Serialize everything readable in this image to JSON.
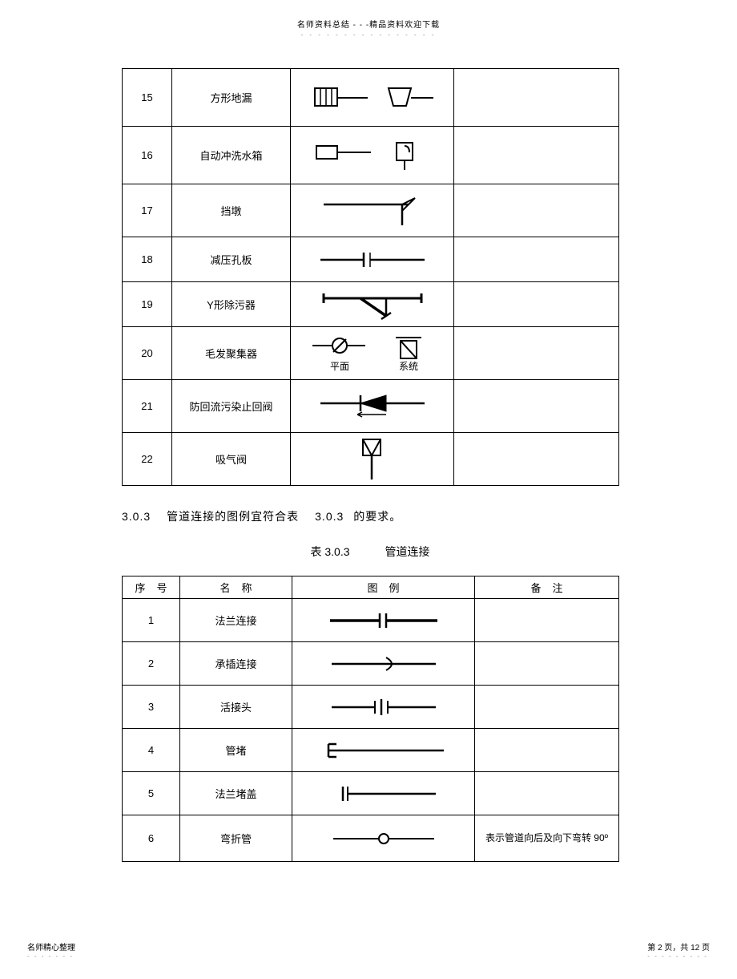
{
  "header": {
    "text": "名师资料总结 - - -精品资料欢迎下载",
    "dots": "- - - - - - - - - - - - - - - -"
  },
  "table1": {
    "rows": [
      {
        "num": "15",
        "name": "方形地漏",
        "symbol": "sq-drain",
        "remark": ""
      },
      {
        "num": "16",
        "name": "自动冲洗水箱",
        "symbol": "flush-tank",
        "remark": ""
      },
      {
        "num": "17",
        "name": "挡墩",
        "symbol": "pier",
        "remark": ""
      },
      {
        "num": "18",
        "name": "减压孔板",
        "symbol": "orifice",
        "remark": ""
      },
      {
        "num": "19",
        "name": "Y形除污器",
        "symbol": "y-strainer",
        "remark": ""
      },
      {
        "num": "20",
        "name": "毛发聚集器",
        "symbol": "hair-trap",
        "remark": "",
        "sub1": "平面",
        "sub2": "系统"
      },
      {
        "num": "21",
        "name": "防回流污染止回阀",
        "symbol": "backflow-check",
        "remark": ""
      },
      {
        "num": "22",
        "name": "吸气阀",
        "symbol": "air-valve",
        "remark": ""
      }
    ]
  },
  "section": {
    "prefix": "3.0.3",
    "middle": "管道连接的图例宜符合表",
    "ref": "3.0.3",
    "suffix": "的要求。"
  },
  "tableTitle": {
    "left": "表 3.0.3",
    "right": "管道连接"
  },
  "table2": {
    "headers": [
      "序号",
      "名称",
      "图例",
      "备注"
    ],
    "rows": [
      {
        "num": "1",
        "name": "法兰连接",
        "symbol": "flange",
        "remark": ""
      },
      {
        "num": "2",
        "name": "承插连接",
        "symbol": "socket",
        "remark": ""
      },
      {
        "num": "3",
        "name": "活接头",
        "symbol": "union",
        "remark": ""
      },
      {
        "num": "4",
        "name": "管堵",
        "symbol": "plug",
        "remark": ""
      },
      {
        "num": "5",
        "name": "法兰堵盖",
        "symbol": "blind-flange",
        "remark": ""
      },
      {
        "num": "6",
        "name": "弯折管",
        "symbol": "bend",
        "remark": "表示管道向后及向下弯转 90º"
      }
    ]
  },
  "footer": {
    "left": "名师精心整理",
    "leftDots": "- - - - - - -",
    "right": "第 2 页，共 12 页",
    "rightDots": "- - - - - - - - -"
  },
  "style": {
    "stroke": "#000000",
    "fill": "#ffffff"
  }
}
